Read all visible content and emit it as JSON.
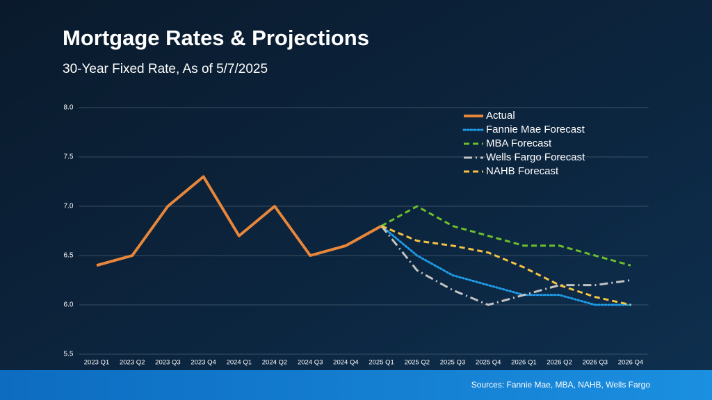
{
  "chart_data": {
    "type": "line",
    "title": "Mortgage Rates & Projections",
    "subtitle": "30-Year Fixed Rate, As of 5/7/2025",
    "source": "Sources: Fannie Mae, MBA, NAHB, Wells Fargo",
    "categories": [
      "2023 Q1",
      "2023 Q2",
      "2023 Q3",
      "2023 Q4",
      "2024 Q1",
      "2024 Q2",
      "2024 Q3",
      "2024 Q4",
      "2025 Q1",
      "2025 Q2",
      "2025 Q3",
      "2025 Q4",
      "2026 Q1",
      "2026 Q2",
      "2026 Q3",
      "2026 Q4"
    ],
    "series": [
      {
        "name": "Actual",
        "color": "#e8873a",
        "dash": "solid",
        "values": [
          6.4,
          6.5,
          7.0,
          7.3,
          6.7,
          7.0,
          6.5,
          6.6,
          6.8,
          null,
          null,
          null,
          null,
          null,
          null,
          null
        ]
      },
      {
        "name": "Fannie Mae Forecast",
        "color": "#1f9be6",
        "dash": "dotted",
        "values": [
          null,
          null,
          null,
          null,
          null,
          null,
          null,
          null,
          6.8,
          6.5,
          6.3,
          6.2,
          6.1,
          6.1,
          6.0,
          6.0
        ]
      },
      {
        "name": "MBA Forecast",
        "color": "#6cbf2a",
        "dash": "dashed",
        "values": [
          null,
          null,
          null,
          null,
          null,
          null,
          null,
          null,
          6.8,
          7.0,
          6.8,
          6.7,
          6.6,
          6.6,
          6.5,
          6.4
        ]
      },
      {
        "name": "Wells Fargo Forecast",
        "color": "#c4c4c4",
        "dash": "dashdot",
        "values": [
          null,
          null,
          null,
          null,
          null,
          null,
          null,
          null,
          6.8,
          6.35,
          6.15,
          6.0,
          6.1,
          6.2,
          6.2,
          6.25
        ]
      },
      {
        "name": "NAHB Forecast",
        "color": "#f5c242",
        "dash": "dashed",
        "values": [
          null,
          null,
          null,
          null,
          null,
          null,
          null,
          null,
          6.8,
          6.65,
          6.6,
          6.53,
          6.38,
          6.2,
          6.08,
          6.0
        ]
      }
    ],
    "ylim": [
      5.5,
      8.0
    ],
    "yticks": [
      {
        "value": 5.5,
        "label": "5.5"
      },
      {
        "value": 6,
        "label": "6.0"
      },
      {
        "value": 6.5,
        "label": "6.5"
      },
      {
        "value": 7,
        "label": "7.0"
      },
      {
        "value": 7.5,
        "label": "7.5"
      },
      {
        "value": 8,
        "label": "8.0"
      }
    ],
    "grid": true,
    "legend": "top-right"
  }
}
